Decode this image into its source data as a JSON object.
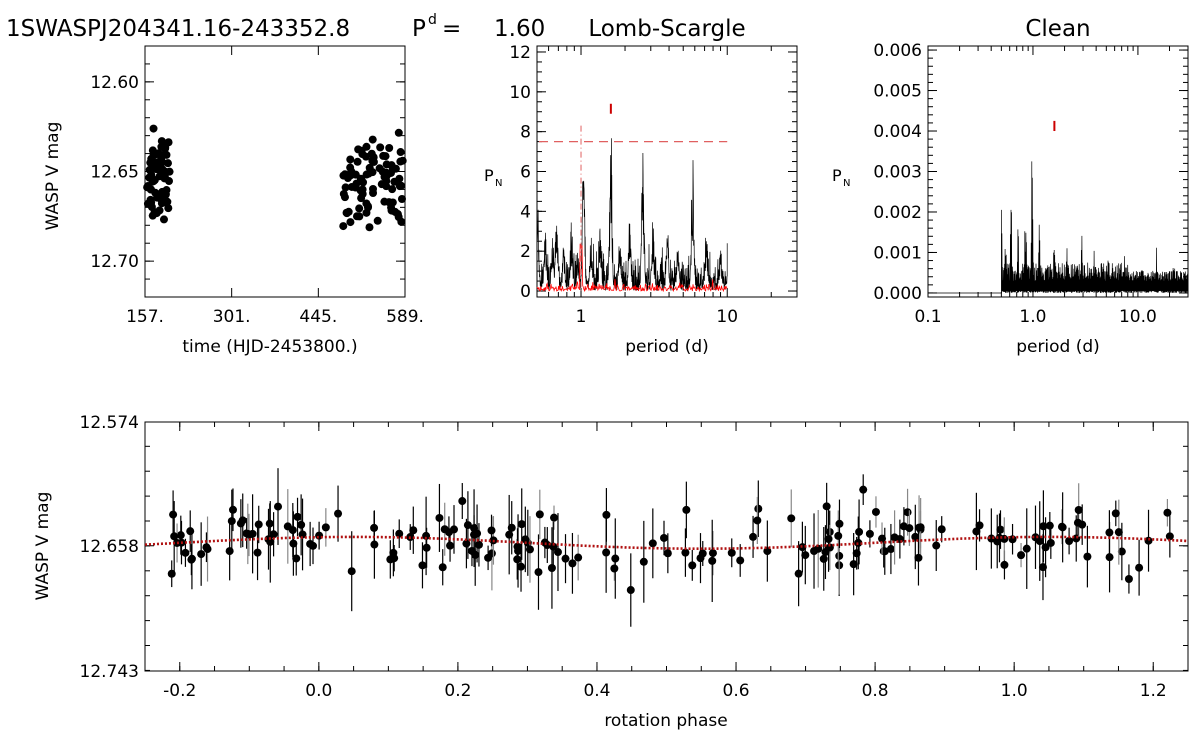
{
  "header": {
    "star_id": "1SWASPJ204341.16-243352.8",
    "period_label": "P",
    "period_sup": "d",
    "period_eq": "=",
    "period_value": "1.60"
  },
  "colors": {
    "ink": "#000000",
    "fit": "#b01010",
    "marker": "#cc0000",
    "threshold": "#e06060",
    "window": "#ff0000"
  },
  "chart_data": [
    {
      "id": "lightcurve",
      "type": "scatter",
      "title": "",
      "xlabel": "time (HJD-2453800.)",
      "ylabel": "WASP V mag",
      "xlim": [
        157,
        589
      ],
      "ylim": [
        12.72,
        12.58
      ],
      "xticks": [
        157,
        301,
        445,
        589
      ],
      "xtick_labels": [
        "157.",
        "301.",
        "445.",
        "589."
      ],
      "yticks": [
        12.6,
        12.65,
        12.7
      ],
      "ytick_labels": [
        "12.60",
        "12.65",
        "12.70"
      ],
      "season1_time": [
        157,
        198
      ],
      "season2_time": [
        486,
        589
      ]
    },
    {
      "id": "lombscargle",
      "type": "line",
      "title": "Lomb-Scargle",
      "xlabel": "period (d)",
      "ylabel": "PN",
      "xscale": "log",
      "xlim": [
        0.5,
        30
      ],
      "ylim": [
        -0.3,
        12.3
      ],
      "xticks": [
        1,
        10
      ],
      "xtick_labels": [
        "1",
        "10"
      ],
      "yticks": [
        0,
        2,
        4,
        6,
        8,
        10,
        12
      ],
      "ytick_labels": [
        "0",
        "2",
        "4",
        "6",
        "8",
        "10",
        "12"
      ],
      "false_alarm_level": 7.5,
      "marked_period": 1.6,
      "peaks": [
        {
          "period": 0.505,
          "power": 4.6
        },
        {
          "period": 0.57,
          "power": 3.1
        },
        {
          "period": 0.64,
          "power": 3.0
        },
        {
          "period": 0.68,
          "power": 4.4
        },
        {
          "period": 0.76,
          "power": 2.4
        },
        {
          "period": 0.86,
          "power": 3.6
        },
        {
          "period": 0.95,
          "power": 2.1
        },
        {
          "period": 1.04,
          "power": 6.9
        },
        {
          "period": 1.17,
          "power": 2.8
        },
        {
          "period": 1.35,
          "power": 3.2
        },
        {
          "period": 1.6,
          "power": 8.5
        },
        {
          "period": 1.85,
          "power": 3.3
        },
        {
          "period": 2.15,
          "power": 3.9
        },
        {
          "period": 2.65,
          "power": 7.2
        },
        {
          "period": 3.1,
          "power": 3.6
        },
        {
          "period": 3.9,
          "power": 3.2
        },
        {
          "period": 4.6,
          "power": 2.9
        },
        {
          "period": 5.8,
          "power": 6.9
        },
        {
          "period": 7.2,
          "power": 3.6
        },
        {
          "period": 9.0,
          "power": 2.4
        },
        {
          "period": 10.0,
          "power": 0.8
        }
      ]
    },
    {
      "id": "clean",
      "type": "line",
      "title": "Clean",
      "xlabel": "period (d)",
      "ylabel": "PN",
      "xscale": "log",
      "xlim": [
        0.1,
        30
      ],
      "ylim": [
        -0.0001,
        0.0061
      ],
      "xticks": [
        0.1,
        1.0,
        10.0
      ],
      "xtick_labels": [
        "0.1",
        "1.0",
        "10.0"
      ],
      "yticks": [
        0.0,
        0.001,
        0.002,
        0.003,
        0.004,
        0.005,
        0.006
      ],
      "ytick_labels": [
        "0.000",
        "0.001",
        "0.002",
        "0.003",
        "0.004",
        "0.005",
        "0.006"
      ],
      "marked_period": 1.6,
      "peaks": [
        {
          "period": 0.5,
          "power": 0.0027
        },
        {
          "period": 0.55,
          "power": 0.0021
        },
        {
          "period": 0.62,
          "power": 0.0024
        },
        {
          "period": 0.72,
          "power": 0.0019
        },
        {
          "period": 0.85,
          "power": 0.0026
        },
        {
          "period": 0.98,
          "power": 0.004
        },
        {
          "period": 1.15,
          "power": 0.0022
        },
        {
          "period": 1.6,
          "power": 0.0017
        },
        {
          "period": 2.1,
          "power": 0.0014
        },
        {
          "period": 2.9,
          "power": 0.0017
        },
        {
          "period": 3.8,
          "power": 0.0012
        },
        {
          "period": 5.2,
          "power": 0.0011
        },
        {
          "period": 7.5,
          "power": 0.001
        },
        {
          "period": 11,
          "power": 0.0011
        },
        {
          "period": 15,
          "power": 0.0013
        },
        {
          "period": 22,
          "power": 0.0012
        },
        {
          "period": 30,
          "power": 0.0013
        }
      ]
    },
    {
      "id": "phasefold",
      "type": "scatter",
      "title": "",
      "xlabel": "rotation phase",
      "ylabel": "WASP V mag",
      "xlim": [
        -0.25,
        1.25
      ],
      "ylim": [
        12.743,
        12.574
      ],
      "xticks": [
        -0.2,
        0.0,
        0.2,
        0.4,
        0.6,
        0.8,
        1.0,
        1.2
      ],
      "xtick_labels": [
        "-0.2",
        "0.0",
        "0.2",
        "0.4",
        "0.6",
        "0.8",
        "1.0",
        "1.2"
      ],
      "yticks": [
        12.574,
        12.658,
        12.743
      ],
      "ytick_labels": [
        "12.574",
        "12.658",
        "12.743"
      ],
      "fit": {
        "type": "sinusoid",
        "mean": 12.656,
        "amplitude": 0.004,
        "period_phase": 1.0,
        "min_mag_phase": 0.05
      }
    }
  ]
}
